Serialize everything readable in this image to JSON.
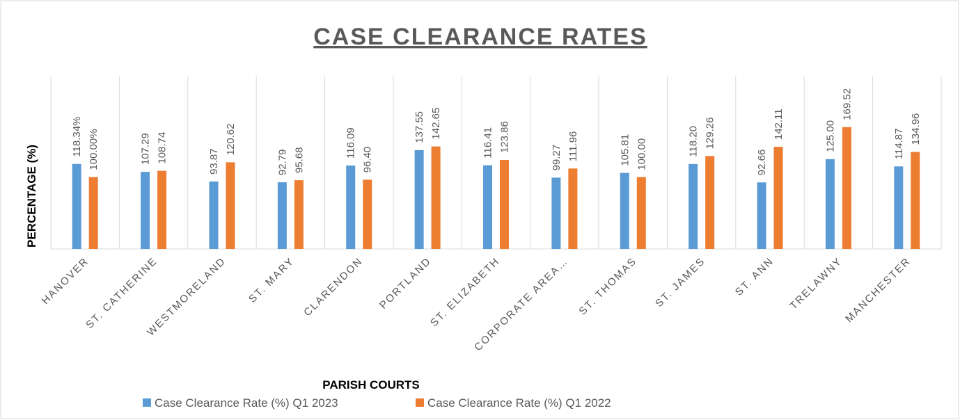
{
  "chart_data": {
    "type": "bar",
    "title": "CASE CLEARANCE RATES",
    "x_label": "PARISH COURTS",
    "y_label": "PERCENTAGE (%)",
    "categories": [
      "HANOVER",
      "ST. CATHERINE",
      "WESTMORELAND",
      "ST. MARY",
      "CLARENDON",
      "PORTLAND",
      "ST. ELIZABETH",
      "CORPORATE AREA…",
      "ST. THOMAS",
      "ST. JAMES",
      "ST. ANN",
      "TRELAWNY",
      "MANCHESTER"
    ],
    "series": [
      {
        "name": "Case Clearance Rate (%) Q1 2023",
        "color": "#5B9BD5",
        "values": [
          118.34,
          107.29,
          93.87,
          92.79,
          116.09,
          137.55,
          116.41,
          99.27,
          105.81,
          118.2,
          92.66,
          125,
          114.87
        ],
        "value_labels": [
          "118.34%",
          "107.29",
          "93.87",
          "92.79",
          "116.09",
          "137.55",
          "116.41",
          "99.27",
          "105.81",
          "118.20",
          "92.66",
          "125.00",
          "114.87"
        ]
      },
      {
        "name": "Case Clearance Rate (%) Q1 2022",
        "color": "#ED7D31",
        "values": [
          100,
          108.74,
          120.62,
          95.68,
          96.4,
          142.65,
          123.86,
          111.96,
          100,
          129.26,
          142.11,
          169.52,
          134.96
        ],
        "value_labels": [
          "100.00%",
          "108.74",
          "120.62",
          "95.68",
          "96.40",
          "142.65",
          "123.86",
          "111.96",
          "100.00",
          "129.26",
          "142.11",
          "169.52",
          "134.96"
        ]
      }
    ],
    "ylim": [
      0,
      240
    ],
    "legend": "bottom"
  }
}
